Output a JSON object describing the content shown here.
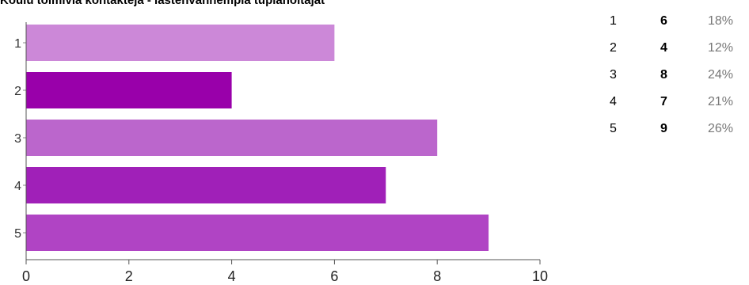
{
  "chart_data": {
    "type": "bar",
    "orientation": "horizontal",
    "title": "Koulu toimivia kontakteja - lastenvanhempia tuplahoitajat",
    "categories": [
      "1",
      "2",
      "3",
      "4",
      "5"
    ],
    "values": [
      6,
      4,
      8,
      7,
      9
    ],
    "colors": [
      "#cc88d8",
      "#9900aa",
      "#bb66cc",
      "#a020b8",
      "#b044c4"
    ],
    "xlim": [
      0,
      10
    ],
    "xticks": [
      "0",
      "2",
      "4",
      "6",
      "8",
      "10"
    ],
    "grid": false,
    "legend_table": [
      {
        "category": "1",
        "count": "6",
        "percent": "18%"
      },
      {
        "category": "2",
        "count": "4",
        "percent": "12%"
      },
      {
        "category": "3",
        "count": "8",
        "percent": "24%"
      },
      {
        "category": "4",
        "count": "7",
        "percent": "21%"
      },
      {
        "category": "5",
        "count": "9",
        "percent": "26%"
      }
    ]
  }
}
